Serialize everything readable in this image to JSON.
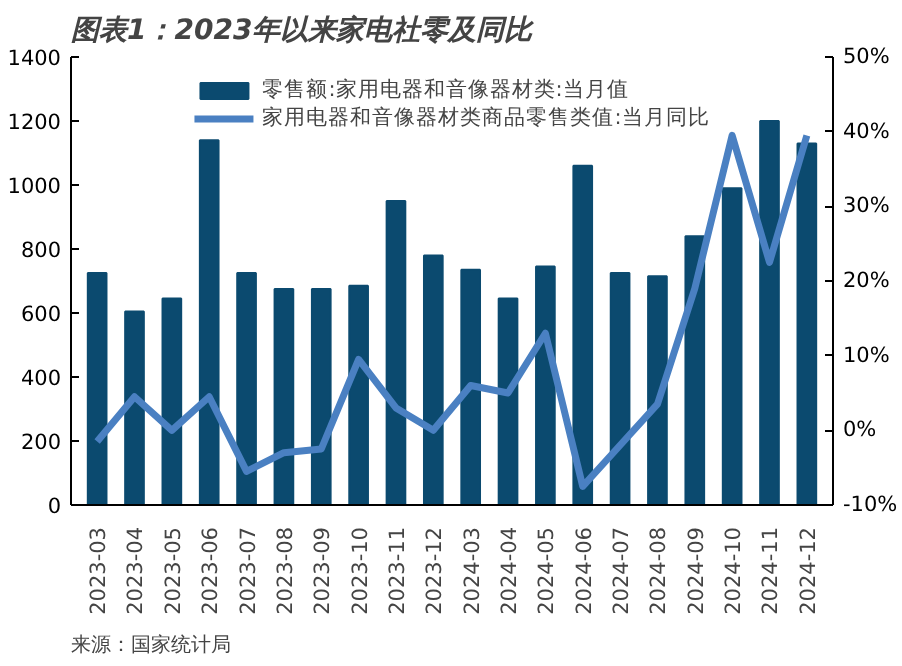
{
  "chart_data": {
    "type": "bar",
    "title": "图表1：2023年以来家电社零及同比",
    "categories": [
      "2023-03",
      "2023-04",
      "2023-05",
      "2023-06",
      "2023-07",
      "2023-08",
      "2023-09",
      "2023-10",
      "2023-11",
      "2023-12",
      "2024-03",
      "2024-04",
      "2024-05",
      "2024-06",
      "2024-07",
      "2024-08",
      "2024-09",
      "2024-10",
      "2024-11",
      "2024-12"
    ],
    "series": [
      {
        "name": "零售额:家用电器和音像器材类:当月值",
        "color": "#0b4a6f",
        "values": [
          725,
          605,
          645,
          1140,
          725,
          675,
          675,
          685,
          950,
          780,
          735,
          645,
          745,
          1060,
          725,
          715,
          840,
          990,
          1200,
          1130
        ]
      },
      {
        "name": "家用电器和音像器材类商品零售类值:当月同比",
        "type": "line",
        "axis": "y2",
        "color": "#4a80c2",
        "values": [
          -1.5,
          4.5,
          0,
          4.5,
          -5.5,
          -3,
          -2.5,
          9.5,
          3,
          0,
          6,
          5,
          13,
          -7.5,
          -2,
          3.5,
          19,
          39.5,
          22.5,
          39.5
        ]
      }
    ],
    "ylim": [
      0,
      1400
    ],
    "yticks": [
      0,
      200,
      400,
      600,
      800,
      1000,
      1200,
      1400
    ],
    "y2lim": [
      -10,
      50
    ],
    "y2ticks": [
      {
        "value": -10,
        "label": "-10%"
      },
      {
        "value": 0,
        "label": "0%"
      },
      {
        "value": 10,
        "label": "10%"
      },
      {
        "value": 20,
        "label": "20%"
      },
      {
        "value": 30,
        "label": "30%"
      },
      {
        "value": 40,
        "label": "40%"
      },
      {
        "value": 50,
        "label": "50%"
      }
    ],
    "legend": "top",
    "grid": false,
    "annotations": [
      "来源：国家统计局"
    ]
  }
}
